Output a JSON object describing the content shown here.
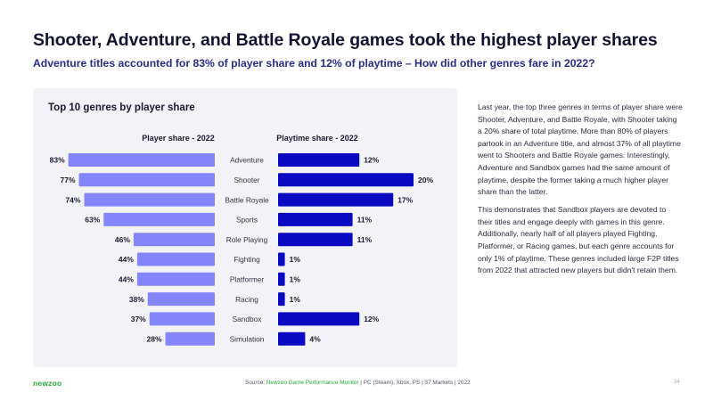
{
  "title": "Shooter, Adventure, and Battle Royale games took the highest player shares",
  "subtitle": "Adventure titles accounted for 83% of player share and 12% of playtime – How did other genres fare in 2022?",
  "panel": {
    "title": "Top 10 genres by player share"
  },
  "colors": {
    "player": "#8585fb",
    "playtime": "#0a0ac2"
  },
  "chart_data": {
    "type": "bar",
    "title": "Top 10 genres by player share",
    "categories": [
      "Adventure",
      "Shooter",
      "Battle Royale",
      "Sports",
      "Role Playing",
      "Fighting",
      "Platformer",
      "Racing",
      "Sandbox",
      "Simulation"
    ],
    "series": [
      {
        "name": "Player share - 2022",
        "values": [
          83,
          77,
          74,
          63,
          46,
          44,
          44,
          38,
          37,
          28
        ],
        "unit": "%"
      },
      {
        "name": "Playtime share - 2022",
        "values": [
          12,
          20,
          17,
          11,
          11,
          1,
          1,
          1,
          12,
          4
        ],
        "unit": "%"
      }
    ]
  },
  "body": {
    "p1": "Last year, the top three genres in terms of player share were Shooter, Adventure, and Battle Royale, with Shooter taking a 20% share of total playtime. More than 80% of players partook in an Adventure title, and almost 37% of all playtime went to Shooters and Battle Royale games. Interestingly, Adventure and Sandbox games had the same amount of playtime, despite the former taking a much higher player share than the latter.",
    "p2": "This demonstrates that Sandbox players are devoted to their titles and engage deeply with games in this genre. Additionally, nearly half of all players played Fighting, Platformer, or Racing games, but each genre accounts for only 1% of playtime. These genres included large F2P titles from 2022 that attracted new players but didn't retain them."
  },
  "footer": {
    "logo": "newzoo",
    "source_label": "Source:",
    "source_brand": "Newzoo Game Performance Monitor",
    "source_rest": " | PC (Steam), Xbox, PS | 37 Markets | 2022",
    "page": "34"
  }
}
